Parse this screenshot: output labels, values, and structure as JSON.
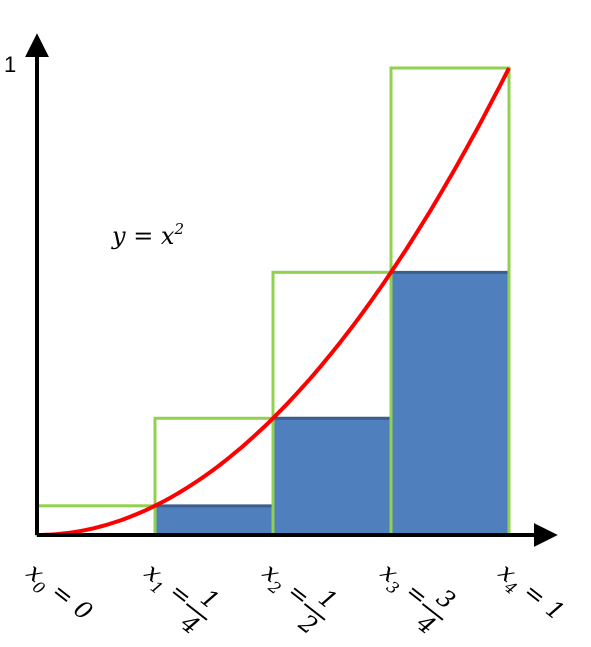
{
  "chart_data": {
    "type": "bar",
    "title": "",
    "xlabel": "",
    "ylabel": "",
    "y_axis_label": "1",
    "curve_label": "y = x²",
    "curve_base": "y = x",
    "curve_exponent": "2",
    "x_partition": [
      0,
      0.25,
      0.5,
      0.75,
      1
    ],
    "tick_labels": [
      {
        "var": "x",
        "sub": "0",
        "eq": "=",
        "num": "0",
        "den": ""
      },
      {
        "var": "x",
        "sub": "1",
        "eq": "=",
        "num": "1",
        "den": "4"
      },
      {
        "var": "x",
        "sub": "2",
        "eq": "=",
        "num": "1",
        "den": "2"
      },
      {
        "var": "x",
        "sub": "3",
        "eq": "=",
        "num": "3",
        "den": "4"
      },
      {
        "var": "x",
        "sub": "4",
        "eq": "=",
        "num": "1",
        "den": ""
      }
    ],
    "series": [
      {
        "kind": "lower-sum-rectangles",
        "x_left": [
          0,
          0.25,
          0.5,
          0.75
        ],
        "heights": [
          0,
          0.0625,
          0.25,
          0.5625
        ]
      },
      {
        "kind": "upper-sum-rectangles",
        "x_left": [
          0,
          0.25,
          0.5,
          0.75
        ],
        "heights": [
          0.0625,
          0.25,
          0.5625,
          1
        ]
      },
      {
        "kind": "curve",
        "function": "x^2",
        "x_range": [
          0,
          1
        ]
      }
    ],
    "xlim": [
      0,
      1
    ],
    "ylim": [
      0,
      1
    ],
    "colors": {
      "lower_fill": "#4f7fbd",
      "lower_top_edge": "#3a5f8f",
      "upper_outline": "#92d050",
      "curve": "#ff0000",
      "axes": "#000000"
    }
  }
}
